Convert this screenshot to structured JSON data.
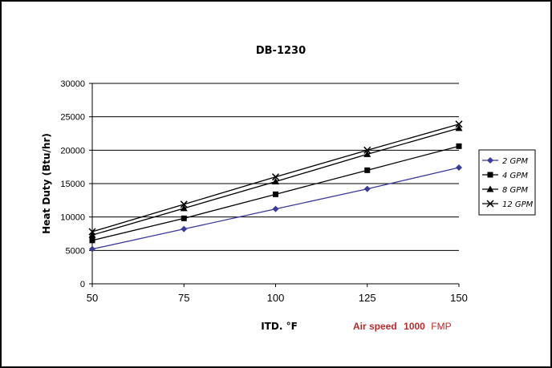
{
  "chart_data": {
    "type": "line",
    "title": "DB-1230",
    "xlabel": "ITD. °F",
    "ylabel": "Heat Duty (Btu/hr)",
    "x": [
      50,
      75,
      100,
      125,
      150
    ],
    "x_ticks": [
      "50",
      "75",
      "100",
      "125",
      "150"
    ],
    "ylim": [
      0,
      30000
    ],
    "y_ticks": [
      "0",
      "5000",
      "10000",
      "15000",
      "20000",
      "25000",
      "30000"
    ],
    "grid": "horizontal",
    "legend_position": "right",
    "series": [
      {
        "name": "2 GPM",
        "values": [
          5200,
          8200,
          11200,
          14200,
          17400
        ],
        "color": "#3a3a9a",
        "marker": "diamond"
      },
      {
        "name": "4 GPM",
        "values": [
          6500,
          9800,
          13400,
          17000,
          20600
        ],
        "color": "#000000",
        "marker": "square"
      },
      {
        "name": "8 GPM",
        "values": [
          7300,
          11300,
          15300,
          19400,
          23300
        ],
        "color": "#000000",
        "marker": "triangle"
      },
      {
        "name": "12 GPM",
        "values": [
          7800,
          11900,
          16000,
          20000,
          23900
        ],
        "color": "#000000",
        "marker": "x"
      }
    ],
    "annotation": {
      "prefix": "Air speed",
      "value": "1000",
      "unit": "FMP",
      "color_strong": "#c0282a",
      "color_plain": "#c0282a"
    }
  }
}
